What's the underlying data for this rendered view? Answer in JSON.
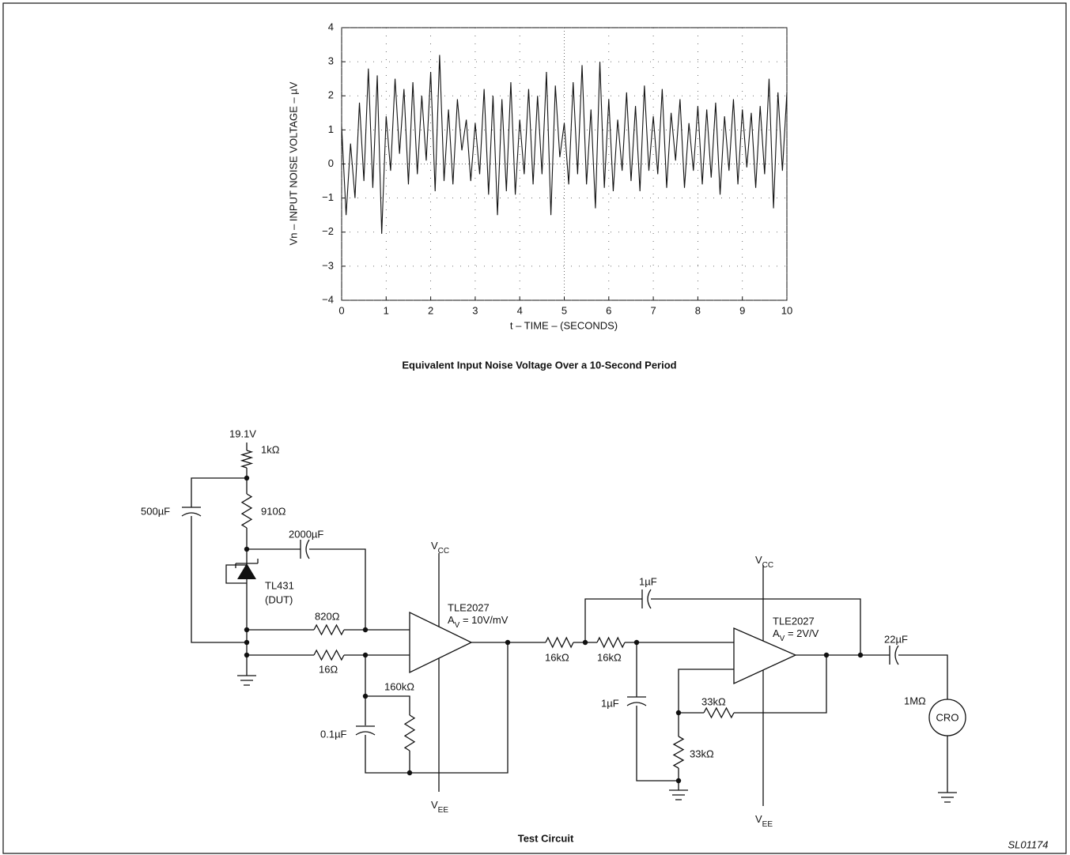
{
  "chart_data": {
    "type": "line",
    "title": "Equivalent Input Noise Voltage Over a 10-Second Period",
    "xlabel": "t – TIME – (SECONDS)",
    "ylabel": "Vn – INPUT NOISE VOLTAGE – µV",
    "x": [
      0,
      0.1,
      0.2,
      0.3,
      0.4,
      0.5,
      0.6,
      0.7,
      0.8,
      0.9,
      1,
      1.1,
      1.2,
      1.3,
      1.4,
      1.5,
      1.6,
      1.7,
      1.8,
      1.9,
      2,
      2.1,
      2.2,
      2.3,
      2.4,
      2.5,
      2.6,
      2.7,
      2.8,
      2.9,
      3,
      3.1,
      3.2,
      3.3,
      3.4,
      3.5,
      3.6,
      3.7,
      3.8,
      3.9,
      4,
      4.1,
      4.2,
      4.3,
      4.4,
      4.5,
      4.6,
      4.7,
      4.8,
      4.9,
      5,
      5.1,
      5.2,
      5.3,
      5.4,
      5.5,
      5.6,
      5.7,
      5.8,
      5.9,
      6,
      6.1,
      6.2,
      6.3,
      6.4,
      6.5,
      6.6,
      6.7,
      6.8,
      6.9,
      7,
      7.1,
      7.2,
      7.3,
      7.4,
      7.5,
      7.6,
      7.7,
      7.8,
      7.9,
      8,
      8.1,
      8.2,
      8.3,
      8.4,
      8.5,
      8.6,
      8.7,
      8.8,
      8.9,
      9,
      9.1,
      9.2,
      9.3,
      9.4,
      9.5,
      9.6,
      9.7,
      9.8,
      9.9,
      10
    ],
    "values": [
      1.1,
      -1.5,
      0.6,
      -1.0,
      1.8,
      -0.5,
      2.8,
      -0.7,
      2.6,
      -2.05,
      1.4,
      -0.2,
      2.5,
      0.3,
      2.2,
      -0.6,
      2.4,
      -0.3,
      2.0,
      0.1,
      2.7,
      -0.8,
      3.2,
      -0.5,
      1.6,
      -0.6,
      1.9,
      0.4,
      1.3,
      -0.5,
      1.2,
      -0.3,
      2.2,
      -0.9,
      2.0,
      -1.5,
      1.9,
      -0.8,
      2.4,
      -0.9,
      1.3,
      -0.3,
      2.2,
      -0.6,
      2.0,
      -0.3,
      2.7,
      -1.5,
      2.3,
      0.2,
      1.2,
      -0.6,
      2.4,
      -0.3,
      2.9,
      -0.6,
      1.6,
      -1.3,
      3.0,
      -0.7,
      1.9,
      -0.8,
      1.3,
      -0.2,
      2.1,
      -0.5,
      1.7,
      -0.8,
      2.3,
      -0.2,
      1.4,
      -0.3,
      2.2,
      -0.7,
      1.5,
      0.1,
      1.9,
      -0.7,
      1.2,
      -0.2,
      1.7,
      -0.6,
      1.6,
      -0.4,
      1.8,
      -0.9,
      1.4,
      -0.2,
      1.9,
      -0.6,
      1.6,
      -0.1,
      1.5,
      -0.7,
      1.7,
      -0.3,
      2.5,
      -1.3,
      2.1,
      -0.2,
      2.1
    ],
    "color": "#111111",
    "xlim": [
      0,
      10
    ],
    "ylim": [
      -4,
      4
    ],
    "xticks": [
      0,
      1,
      2,
      3,
      4,
      5,
      6,
      7,
      8,
      9,
      10
    ],
    "yticks": [
      {
        "value": -4,
        "label": "−4"
      },
      {
        "value": -3,
        "label": "−3"
      },
      {
        "value": -2,
        "label": "−2"
      },
      {
        "value": -1,
        "label": "−1"
      },
      0,
      1,
      2,
      3,
      4
    ],
    "grid": true
  },
  "circuit": {
    "title": "Test Circuit",
    "labels": {
      "supply": "19.1V",
      "r1": "1kΩ",
      "c1": "500µF",
      "r2": "910Ω",
      "c2": "2000µF",
      "dut1": "TL431",
      "dut2": "(DUT)",
      "r3": "820Ω",
      "r4": "16Ω",
      "r5": "160kΩ",
      "c3": "0.1µF",
      "vcc1": {
        "base": "V",
        "sub": "CC"
      },
      "vee1": {
        "base": "V",
        "sub": "EE"
      },
      "amp1": "TLE2027",
      "gain1": {
        "base": "A",
        "sub": "V",
        "rest": " = 10V/mV"
      },
      "r6": "16kΩ",
      "r7": "16kΩ",
      "c4": "1µF",
      "c5": "1µF",
      "vcc2": {
        "base": "V",
        "sub": "CC"
      },
      "vee2": {
        "base": "V",
        "sub": "EE"
      },
      "amp2": "TLE2027",
      "gain2": {
        "base": "A",
        "sub": "V",
        "rest": " = 2V/V"
      },
      "r8": "33kΩ",
      "r9": "33kΩ",
      "c6": "22µF",
      "load": "1MΩ",
      "scope": "CRO",
      "plus1": "+",
      "minus1": "–",
      "plus2": "+",
      "minus2": "–"
    }
  },
  "figure_id": "SL01174"
}
